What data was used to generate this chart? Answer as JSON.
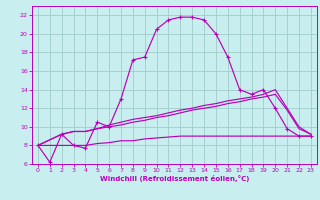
{
  "background_color": "#c8eef0",
  "grid_color": "#a0ccc8",
  "line_color": "#bb00bb",
  "xlabel": "Windchill (Refroidissement éolien,°C)",
  "xlim": [
    -0.5,
    23.5
  ],
  "ylim": [
    6,
    23
  ],
  "xticks": [
    0,
    1,
    2,
    3,
    4,
    5,
    6,
    7,
    8,
    9,
    10,
    11,
    12,
    13,
    14,
    15,
    16,
    17,
    18,
    19,
    20,
    21,
    22,
    23
  ],
  "yticks": [
    6,
    8,
    10,
    12,
    14,
    16,
    18,
    20,
    22
  ],
  "line1_x": [
    0,
    1,
    2,
    3,
    4,
    5,
    6,
    7,
    8,
    9,
    10,
    11,
    12,
    13,
    14,
    15,
    16,
    17,
    18,
    19,
    20,
    21,
    22,
    23
  ],
  "line1_y": [
    8.0,
    6.2,
    9.2,
    8.0,
    7.7,
    10.5,
    10.0,
    13.0,
    17.2,
    17.5,
    20.5,
    21.5,
    21.8,
    21.8,
    21.5,
    20.0,
    17.5,
    14.0,
    13.5,
    14.0,
    12.0,
    9.8,
    9.0,
    9.0
  ],
  "line2_x": [
    0,
    2,
    3,
    4,
    5,
    6,
    7,
    8,
    9,
    10,
    11,
    12,
    13,
    14,
    15,
    16,
    17,
    18,
    19,
    20,
    21,
    22,
    23
  ],
  "line2_y": [
    8.0,
    9.2,
    9.5,
    9.5,
    9.8,
    10.2,
    10.5,
    10.8,
    11.0,
    11.2,
    11.5,
    11.8,
    12.0,
    12.3,
    12.5,
    12.8,
    13.0,
    13.2,
    13.5,
    14.0,
    12.0,
    10.0,
    9.2
  ],
  "line3_x": [
    0,
    2,
    3,
    4,
    5,
    6,
    7,
    8,
    9,
    10,
    11,
    12,
    13,
    14,
    15,
    16,
    17,
    18,
    19,
    20,
    21,
    22,
    23
  ],
  "line3_y": [
    8.0,
    9.2,
    9.5,
    9.5,
    9.8,
    10.0,
    10.2,
    10.5,
    10.7,
    11.0,
    11.2,
    11.5,
    11.8,
    12.0,
    12.2,
    12.5,
    12.7,
    13.0,
    13.2,
    13.5,
    11.8,
    9.8,
    9.2
  ],
  "line4_x": [
    0,
    2,
    3,
    4,
    5,
    6,
    7,
    8,
    9,
    10,
    11,
    12,
    13,
    14,
    15,
    16,
    17,
    18,
    19,
    20,
    21,
    22,
    23
  ],
  "line4_y": [
    8.0,
    8.0,
    8.0,
    8.0,
    8.2,
    8.3,
    8.5,
    8.5,
    8.7,
    8.8,
    8.9,
    9.0,
    9.0,
    9.0,
    9.0,
    9.0,
    9.0,
    9.0,
    9.0,
    9.0,
    9.0,
    9.0,
    9.0
  ]
}
